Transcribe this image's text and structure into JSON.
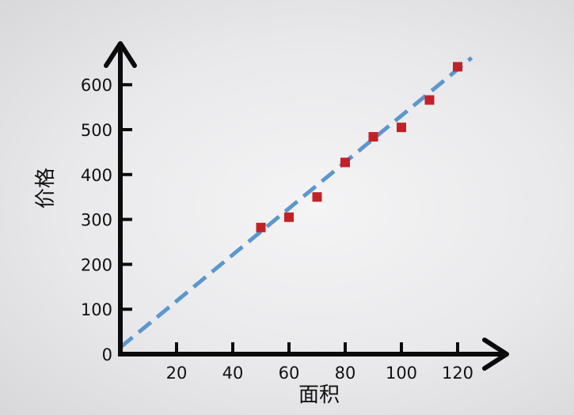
{
  "chart_data": {
    "type": "scatter",
    "xlabel": "面积",
    "ylabel": "价格",
    "xlim": [
      0,
      130
    ],
    "ylim": [
      0,
      680
    ],
    "x_ticks": [
      "20",
      "40",
      "60",
      "80",
      "100",
      "120"
    ],
    "y_ticks": [
      "0",
      "100",
      "200",
      "300",
      "400",
      "500",
      "600"
    ],
    "grid": false,
    "points": {
      "x": [
        50,
        60,
        70,
        80,
        90,
        100,
        110,
        120
      ],
      "y": [
        282,
        305,
        350,
        427,
        484,
        505,
        566,
        640
      ]
    },
    "trend_line": {
      "x": [
        0,
        125
      ],
      "y": [
        15,
        660
      ]
    },
    "colors": {
      "points": "#c42127",
      "trend_line": "#5b97cf",
      "axis": "#0b0b0b"
    }
  }
}
